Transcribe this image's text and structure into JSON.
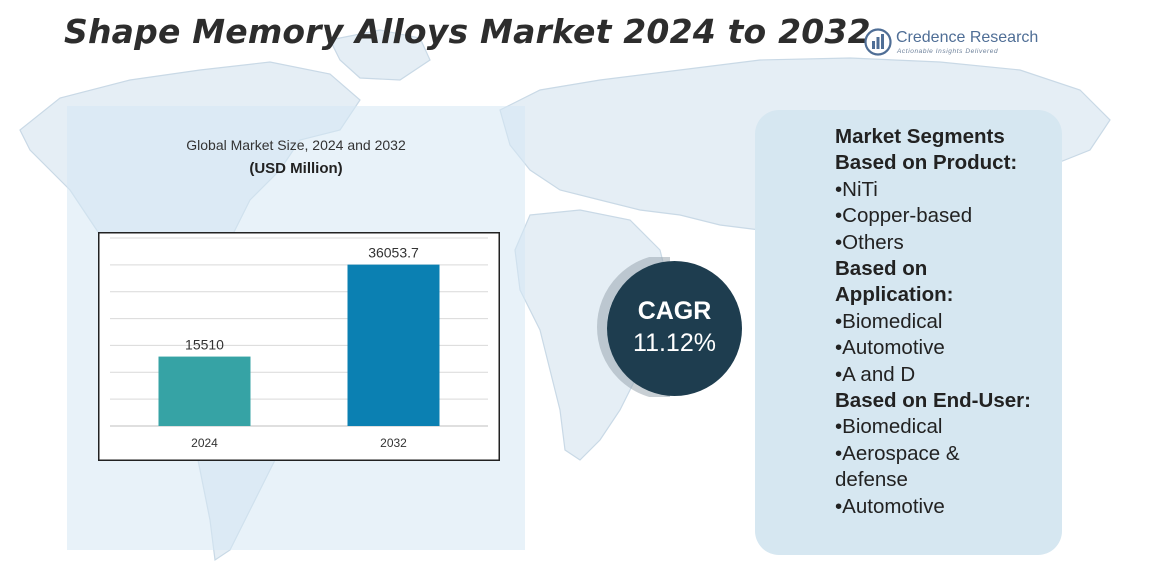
{
  "header": {
    "title": "Shape Memory Alloys Market 2024 to 2032"
  },
  "logo": {
    "name": "Credence Research",
    "tagline": "Actionable Insights Delivered"
  },
  "chart_data": {
    "type": "bar",
    "title": "Global Market Size, 2024 and 2032",
    "unit": "(USD Million)",
    "categories": [
      "2024",
      "2032"
    ],
    "values": [
      15510,
      36053.7
    ],
    "data_labels": [
      "15510",
      "36053.7"
    ],
    "ylim": [
      0,
      42000
    ],
    "grid": true,
    "colors": [
      "#36a3a5",
      "#0b80b2"
    ],
    "xlabel": "",
    "ylabel": ""
  },
  "cagr": {
    "label": "CAGR",
    "value": "11.12%"
  },
  "segments": {
    "lines": [
      {
        "text": "Market Segments",
        "kind": "head"
      },
      {
        "text": "Based on Product:",
        "kind": "head"
      },
      {
        "text": "•NiTi",
        "kind": "item"
      },
      {
        "text": "•Copper-based",
        "kind": "item"
      },
      {
        "text": "•Others",
        "kind": "item"
      },
      {
        "text": "Based on",
        "kind": "head"
      },
      {
        "text": "Application:",
        "kind": "head"
      },
      {
        "text": "•Biomedical",
        "kind": "item"
      },
      {
        "text": "•Automotive",
        "kind": "item"
      },
      {
        "text": "•A and D",
        "kind": "item"
      },
      {
        "text": "Based on End-User:",
        "kind": "head"
      },
      {
        "text": "•Biomedical",
        "kind": "item"
      },
      {
        "text": "•Aerospace &",
        "kind": "item"
      },
      {
        "text": "defense",
        "kind": "item"
      },
      {
        "text": "•Automotive",
        "kind": "item"
      }
    ]
  }
}
